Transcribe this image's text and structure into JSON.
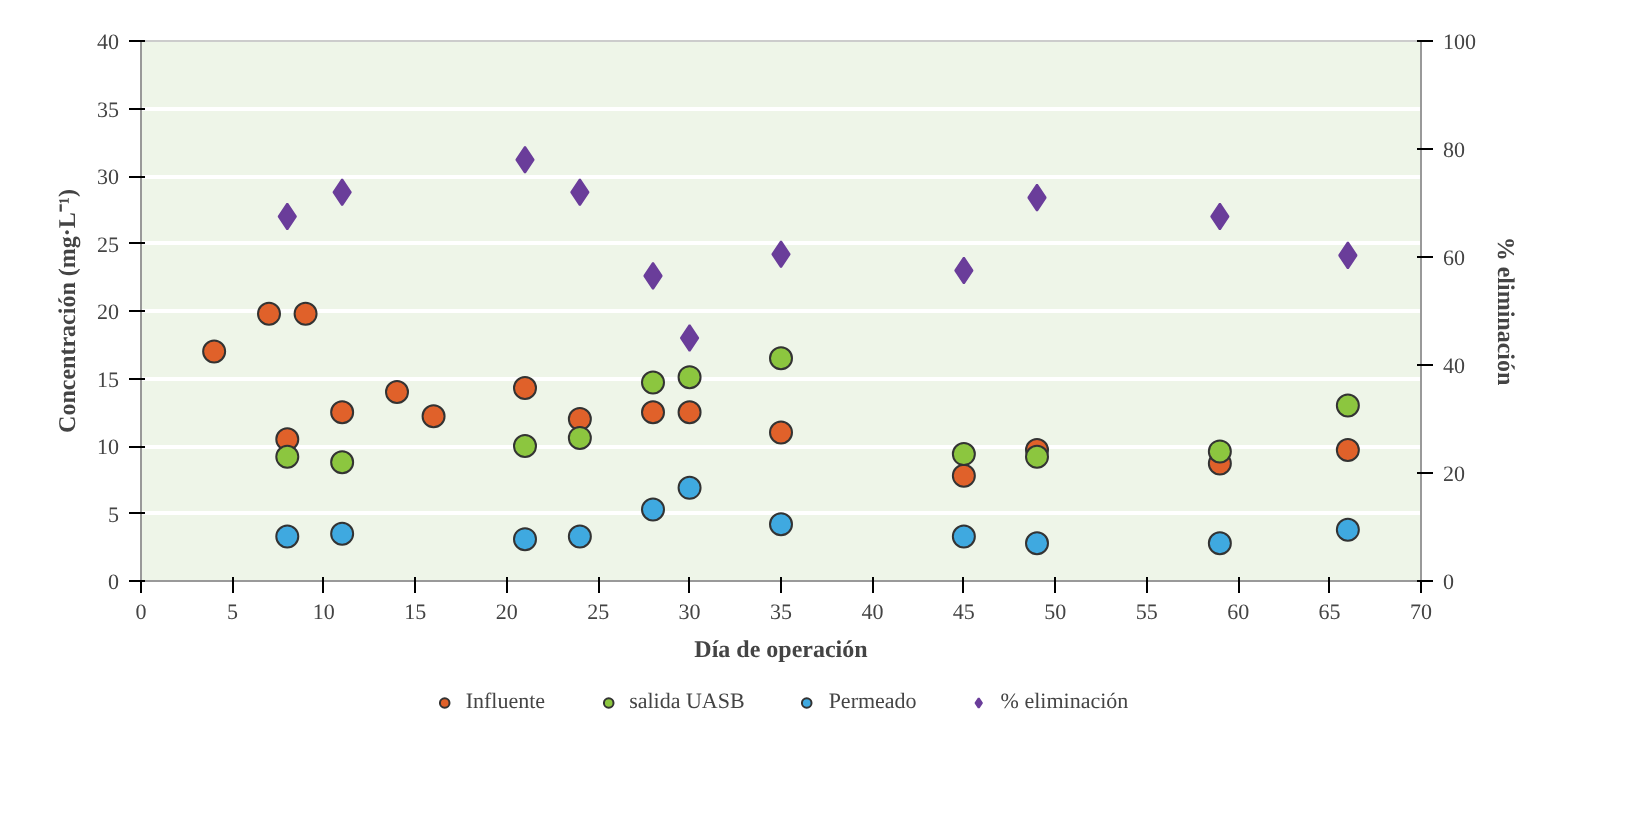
{
  "chart_data": {
    "type": "scatter",
    "xlabel": "Día de operación",
    "ylabel": "Concentración (mg·L⁻¹)",
    "y2label": "% eliminación",
    "xlim": [
      0,
      70
    ],
    "xticks": [
      0,
      5,
      10,
      15,
      20,
      25,
      30,
      35,
      40,
      45,
      50,
      55,
      60,
      65,
      70
    ],
    "ylim": [
      0,
      40
    ],
    "yticks": [
      0,
      5,
      10,
      15,
      20,
      25,
      30,
      35,
      40
    ],
    "y2lim": [
      0,
      100
    ],
    "y2ticks": [
      0,
      20,
      40,
      60,
      80,
      100
    ],
    "grid": "y",
    "legend": "bottom",
    "marker": "circle",
    "series": [
      {
        "name": "Influente",
        "color": "#e0612a",
        "x": [
          4,
          7,
          9,
          8,
          11,
          14,
          16,
          21,
          24,
          28,
          30,
          35,
          45,
          49,
          59,
          66
        ],
        "values": [
          17,
          19.8,
          19.8,
          10.5,
          12.5,
          14,
          12.2,
          14.3,
          12,
          12.5,
          12.5,
          11,
          7.8,
          9.7,
          8.7,
          9.7
        ]
      },
      {
        "name": "salida UASB",
        "color": "#8cc63f",
        "x": [
          8,
          11,
          21,
          24,
          28,
          30,
          35,
          45,
          49,
          59,
          66
        ],
        "values": [
          9.2,
          8.8,
          10,
          10.6,
          14.7,
          15.1,
          16.5,
          9.4,
          9.2,
          9.6,
          13
        ]
      },
      {
        "name": "Permeado",
        "color": "#3fa9e0",
        "x": [
          8,
          11,
          21,
          24,
          28,
          30,
          35,
          45,
          49,
          59,
          66
        ],
        "values": [
          3.3,
          3.5,
          3.1,
          3.3,
          5.3,
          6.9,
          4.2,
          3.3,
          2.8,
          2.8,
          3.8
        ]
      },
      {
        "name": "% eliminación",
        "color": "#6a3d9a",
        "marker": "diamond",
        "axis": "y2",
        "x": [
          8,
          11,
          21,
          24,
          28,
          30,
          35,
          45,
          49,
          59,
          66
        ],
        "values": [
          67.5,
          72,
          78,
          72,
          56.5,
          45,
          60.5,
          57.5,
          71,
          67.5,
          60.3
        ]
      }
    ]
  }
}
